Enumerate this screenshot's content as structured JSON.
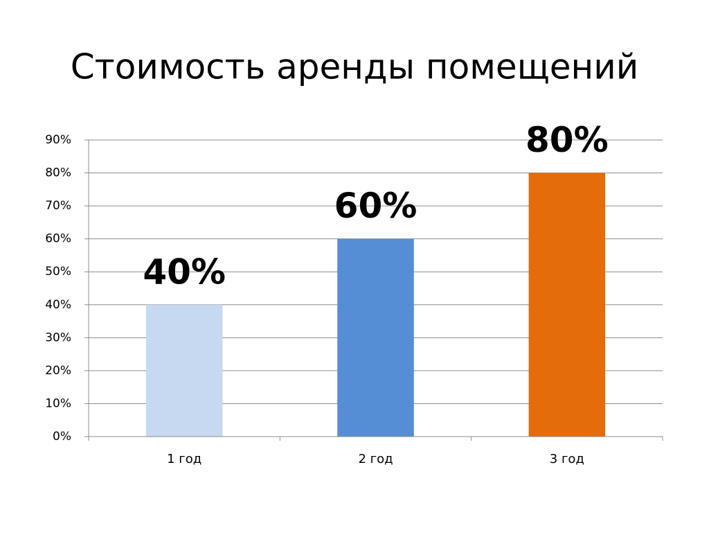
{
  "chart_data": {
    "type": "bar",
    "title": "Стоимость аренды помещений",
    "categories": [
      "1 год",
      "2 год",
      "3 год"
    ],
    "values": [
      40,
      60,
      80
    ],
    "value_labels": [
      "40%",
      "60%",
      "80%"
    ],
    "colors": [
      "#c6d9f1",
      "#558ed5",
      "#e46c0a"
    ],
    "ylim": [
      0,
      90
    ],
    "yticks": [
      {
        "value": 0,
        "label": "0%"
      },
      {
        "value": 10,
        "label": "10%"
      },
      {
        "value": 20,
        "label": "20%"
      },
      {
        "value": 30,
        "label": "30%"
      },
      {
        "value": 40,
        "label": "40%"
      },
      {
        "value": 50,
        "label": "50%"
      },
      {
        "value": 60,
        "label": "60%"
      },
      {
        "value": 70,
        "label": "70%"
      },
      {
        "value": 80,
        "label": "80%"
      },
      {
        "value": 90,
        "label": "90%"
      }
    ],
    "grid": true
  }
}
